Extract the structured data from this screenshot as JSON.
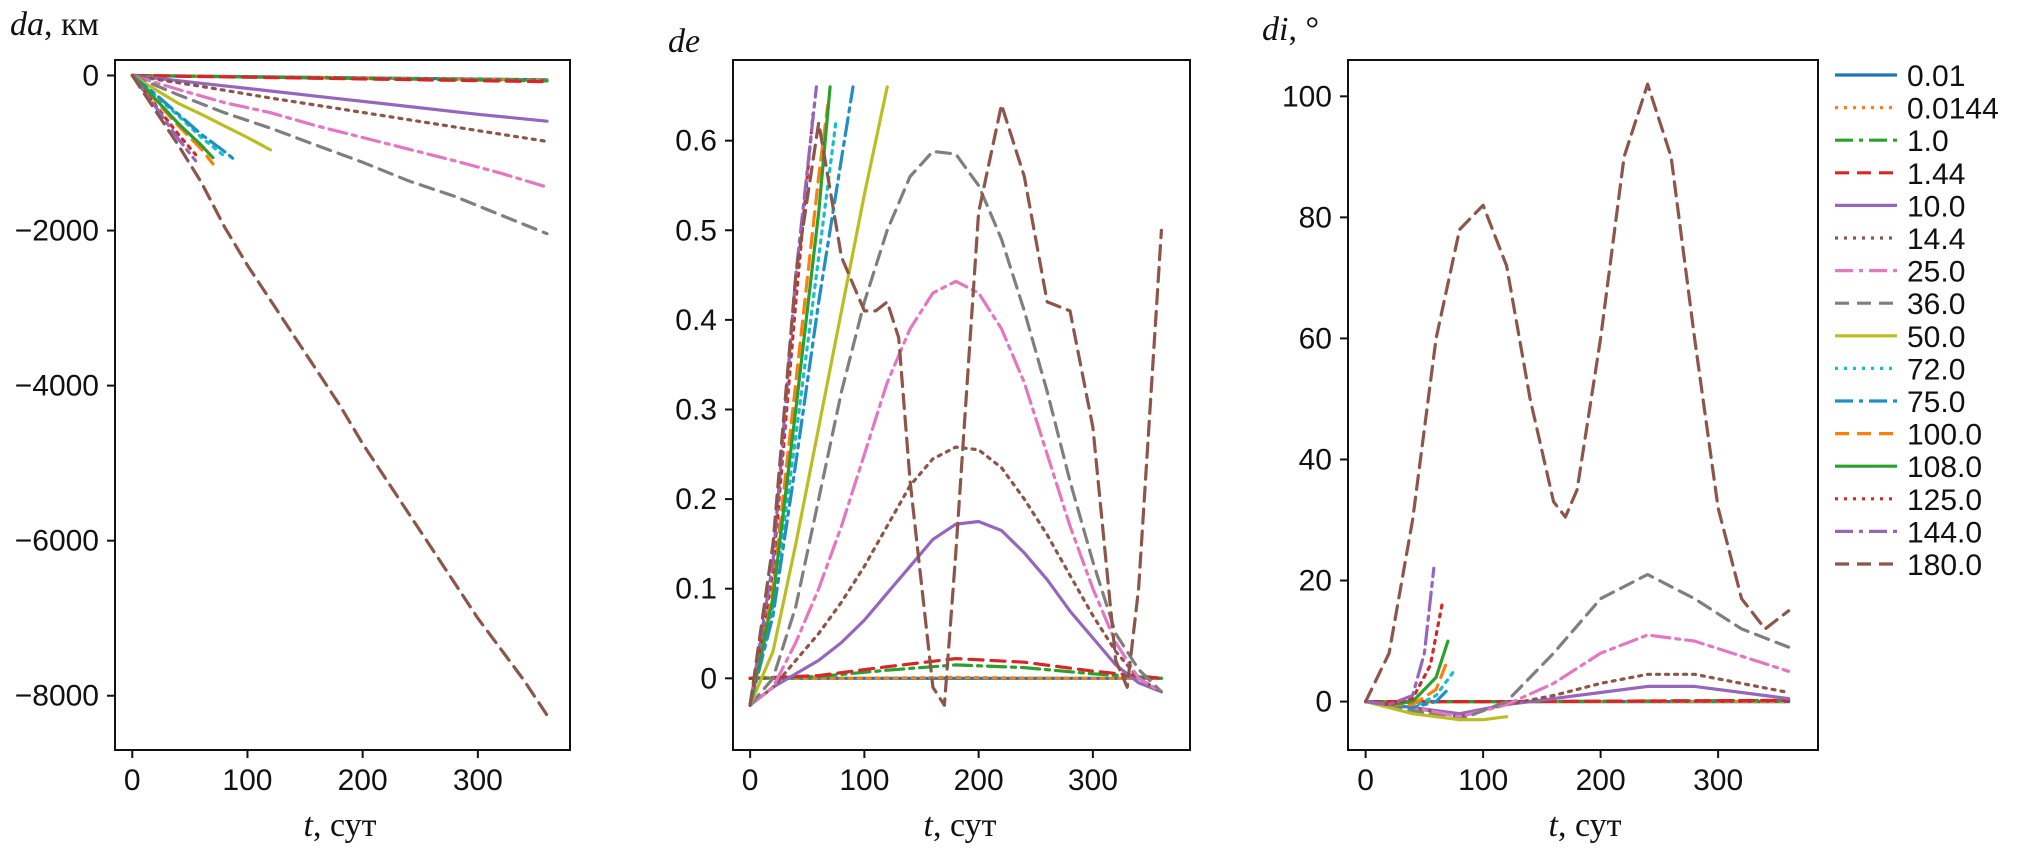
{
  "chart_data": [
    {
      "type": "line",
      "ylabel_var": "da",
      "ylabel_unit": ", км",
      "xlabel_var": "t",
      "xlabel_unit": ", сут",
      "xlim": [
        -15,
        380
      ],
      "ylim": [
        -8700,
        200
      ],
      "xticks": [
        0,
        100,
        200,
        300
      ],
      "yticks": [
        0,
        -2000,
        -4000,
        -6000,
        -8000
      ],
      "ytick_labels": [
        "0",
        "−2000",
        "−4000",
        "−6000",
        "−8000"
      ],
      "series": [
        {
          "name": "0.01",
          "x": [
            0,
            360
          ],
          "y": [
            0,
            -55
          ]
        },
        {
          "name": "0.0144",
          "x": [
            0,
            360
          ],
          "y": [
            0,
            -60
          ]
        },
        {
          "name": "1.0",
          "x": [
            0,
            360
          ],
          "y": [
            0,
            -70
          ]
        },
        {
          "name": "1.44",
          "x": [
            0,
            360
          ],
          "y": [
            0,
            -80
          ]
        },
        {
          "name": "10.0",
          "x": [
            0,
            60,
            120,
            180,
            240,
            300,
            360
          ],
          "y": [
            0,
            -100,
            -200,
            -300,
            -400,
            -500,
            -590
          ]
        },
        {
          "name": "14.4",
          "x": [
            0,
            60,
            120,
            180,
            240,
            300,
            360
          ],
          "y": [
            0,
            -140,
            -290,
            -430,
            -570,
            -710,
            -850
          ]
        },
        {
          "name": "25.0",
          "x": [
            0,
            40,
            80,
            120,
            160,
            200,
            240,
            280,
            320,
            360
          ],
          "y": [
            0,
            -180,
            -350,
            -480,
            -650,
            -800,
            -950,
            -1100,
            -1260,
            -1440
          ]
        },
        {
          "name": "36.0",
          "x": [
            0,
            40,
            80,
            120,
            160,
            200,
            240,
            280,
            320,
            360
          ],
          "y": [
            0,
            -250,
            -480,
            -680,
            -900,
            -1120,
            -1360,
            -1560,
            -1800,
            -2040
          ]
        },
        {
          "name": "50.0",
          "x": [
            0,
            20,
            40,
            60,
            80,
            100,
            120
          ],
          "y": [
            0,
            -180,
            -360,
            -500,
            -650,
            -800,
            -960
          ]
        },
        {
          "name": "72.0",
          "x": [
            0,
            20,
            40,
            60,
            80
          ],
          "y": [
            0,
            -260,
            -520,
            -800,
            -1040
          ]
        },
        {
          "name": "75.0",
          "x": [
            0,
            20,
            40,
            60,
            80,
            90
          ],
          "y": [
            0,
            -240,
            -500,
            -760,
            -980,
            -1100
          ]
        },
        {
          "name": "100.0",
          "x": [
            0,
            20,
            40,
            60,
            70
          ],
          "y": [
            0,
            -320,
            -650,
            -950,
            -1140
          ]
        },
        {
          "name": "108.0",
          "x": [
            0,
            20,
            40,
            60,
            70
          ],
          "y": [
            0,
            -300,
            -620,
            -900,
            -1060
          ]
        },
        {
          "name": "125.0",
          "x": [
            0,
            20,
            40,
            55
          ],
          "y": [
            0,
            -380,
            -760,
            -1020
          ]
        },
        {
          "name": "144.0",
          "x": [
            0,
            20,
            40,
            55
          ],
          "y": [
            0,
            -400,
            -820,
            -1100
          ]
        },
        {
          "name": "180.0",
          "x": [
            0,
            20,
            40,
            60,
            80,
            100,
            120,
            140,
            160,
            180,
            200,
            220,
            240,
            260,
            280,
            300,
            320,
            340,
            360
          ],
          "y": [
            0,
            -450,
            -900,
            -1380,
            -1950,
            -2450,
            -2900,
            -3350,
            -3800,
            -4250,
            -4750,
            -5200,
            -5650,
            -6100,
            -6550,
            -7000,
            -7400,
            -7800,
            -8250
          ]
        }
      ]
    },
    {
      "type": "line",
      "ylabel_var": "de",
      "ylabel_unit": "",
      "xlabel_var": "t",
      "xlabel_unit": ", сут",
      "xlim": [
        -15,
        385
      ],
      "ylim": [
        -0.08,
        0.69
      ],
      "xticks": [
        0,
        100,
        200,
        300
      ],
      "yticks": [
        0,
        0.1,
        0.2,
        0.3,
        0.4,
        0.5,
        0.6
      ],
      "ytick_labels": [
        "0",
        "0.1",
        "0.2",
        "0.3",
        "0.4",
        "0.5",
        "0.6"
      ],
      "series": [
        {
          "name": "0.01",
          "x": [
            0,
            90,
            180,
            270,
            360
          ],
          "y": [
            0,
            0,
            0,
            0,
            0
          ]
        },
        {
          "name": "0.0144",
          "x": [
            0,
            90,
            180,
            270,
            360
          ],
          "y": [
            0,
            0,
            0.001,
            0,
            0
          ]
        },
        {
          "name": "1.0",
          "x": [
            0,
            60,
            120,
            180,
            240,
            300,
            360
          ],
          "y": [
            0,
            0.002,
            0.009,
            0.015,
            0.012,
            0.005,
            0
          ]
        },
        {
          "name": "1.44",
          "x": [
            0,
            60,
            120,
            180,
            240,
            300,
            360
          ],
          "y": [
            0,
            0.003,
            0.013,
            0.022,
            0.018,
            0.008,
            0
          ]
        },
        {
          "name": "10.0",
          "x": [
            0,
            20,
            40,
            60,
            80,
            100,
            120,
            140,
            160,
            180,
            200,
            220,
            240,
            260,
            280,
            300,
            320,
            340,
            360
          ],
          "y": [
            -0.03,
            -0.01,
            0.005,
            0.02,
            0.04,
            0.065,
            0.095,
            0.125,
            0.155,
            0.172,
            0.175,
            0.165,
            0.14,
            0.11,
            0.075,
            0.045,
            0.015,
            -0.005,
            -0.015
          ]
        },
        {
          "name": "14.4",
          "x": [
            0,
            20,
            40,
            60,
            80,
            100,
            120,
            140,
            160,
            180,
            200,
            220,
            240,
            260,
            280,
            300,
            320,
            340,
            360
          ],
          "y": [
            -0.03,
            -0.01,
            0.02,
            0.05,
            0.085,
            0.125,
            0.17,
            0.215,
            0.245,
            0.258,
            0.255,
            0.235,
            0.2,
            0.16,
            0.115,
            0.07,
            0.03,
            0,
            -0.015
          ]
        },
        {
          "name": "25.0",
          "x": [
            0,
            20,
            40,
            60,
            80,
            100,
            120,
            140,
            160,
            180,
            200,
            220,
            240,
            260,
            280,
            300,
            320,
            340,
            360
          ],
          "y": [
            -0.03,
            -0.01,
            0.04,
            0.1,
            0.17,
            0.25,
            0.33,
            0.39,
            0.43,
            0.443,
            0.43,
            0.39,
            0.33,
            0.25,
            0.17,
            0.1,
            0.04,
            0,
            -0.015
          ]
        },
        {
          "name": "36.0",
          "x": [
            0,
            20,
            40,
            60,
            80,
            100,
            120,
            140,
            160,
            180,
            200,
            220,
            240,
            260,
            280,
            300,
            320,
            340,
            360
          ],
          "y": [
            -0.03,
            0,
            0.08,
            0.2,
            0.32,
            0.42,
            0.5,
            0.56,
            0.588,
            0.585,
            0.55,
            0.49,
            0.41,
            0.32,
            0.22,
            0.13,
            0.05,
            0.01,
            -0.015
          ]
        },
        {
          "name": "50.0",
          "x": [
            0,
            20,
            40,
            60,
            80,
            100,
            120
          ],
          "y": [
            -0.03,
            0.03,
            0.15,
            0.28,
            0.41,
            0.54,
            0.66
          ]
        },
        {
          "name": "72.0",
          "x": [
            0,
            20,
            40,
            60,
            75
          ],
          "y": [
            -0.03,
            0.08,
            0.27,
            0.47,
            0.62
          ]
        },
        {
          "name": "75.0",
          "x": [
            0,
            20,
            40,
            60,
            80,
            90
          ],
          "y": [
            -0.03,
            0.07,
            0.24,
            0.42,
            0.58,
            0.66
          ]
        },
        {
          "name": "100.0",
          "x": [
            0,
            20,
            40,
            60,
            68
          ],
          "y": [
            -0.03,
            0.1,
            0.33,
            0.56,
            0.64
          ]
        },
        {
          "name": "108.0",
          "x": [
            0,
            20,
            40,
            60,
            70
          ],
          "y": [
            -0.03,
            0.09,
            0.3,
            0.52,
            0.66
          ]
        },
        {
          "name": "125.0",
          "x": [
            0,
            20,
            40,
            55
          ],
          "y": [
            -0.03,
            0.12,
            0.42,
            0.63
          ]
        },
        {
          "name": "144.0",
          "x": [
            0,
            20,
            40,
            58
          ],
          "y": [
            -0.03,
            0.13,
            0.45,
            0.66
          ]
        },
        {
          "name": "180.0",
          "x": [
            0,
            20,
            40,
            60,
            80,
            100,
            110,
            120,
            130,
            140,
            160,
            170,
            180,
            200,
            220,
            240,
            260,
            280,
            300,
            320,
            330,
            340,
            360
          ],
          "y": [
            -0.03,
            0.15,
            0.45,
            0.62,
            0.47,
            0.41,
            0.41,
            0.42,
            0.38,
            0.22,
            -0.01,
            -0.03,
            0.14,
            0.52,
            0.64,
            0.56,
            0.42,
            0.41,
            0.28,
            0.02,
            -0.01,
            0.1,
            0.5
          ]
        }
      ]
    },
    {
      "type": "line",
      "ylabel_var": "di",
      "ylabel_unit": ", °",
      "xlabel_var": "t",
      "xlabel_unit": ", сут",
      "xlim": [
        -15,
        385
      ],
      "ylim": [
        -8,
        106
      ],
      "xticks": [
        0,
        100,
        200,
        300
      ],
      "yticks": [
        0,
        20,
        40,
        60,
        80,
        100
      ],
      "ytick_labels": [
        "0",
        "20",
        "40",
        "60",
        "80",
        "100"
      ],
      "legend_position": "right",
      "series": [
        {
          "name": "0.01",
          "x": [
            0,
            120,
            240,
            360
          ],
          "y": [
            0,
            0,
            0,
            0
          ]
        },
        {
          "name": "0.0144",
          "x": [
            0,
            120,
            240,
            360
          ],
          "y": [
            0,
            0,
            0,
            0
          ]
        },
        {
          "name": "1.0",
          "x": [
            0,
            120,
            240,
            360
          ],
          "y": [
            0,
            0,
            0.1,
            0.2
          ]
        },
        {
          "name": "1.44",
          "x": [
            0,
            120,
            240,
            360
          ],
          "y": [
            0,
            0,
            0.1,
            0.2
          ]
        },
        {
          "name": "10.0",
          "x": [
            0,
            40,
            80,
            120,
            160,
            200,
            240,
            280,
            320,
            360
          ],
          "y": [
            0,
            -1,
            -2,
            -0.5,
            0.5,
            1.5,
            2.5,
            2.5,
            1.5,
            0.5
          ]
        },
        {
          "name": "14.4",
          "x": [
            0,
            40,
            80,
            120,
            160,
            200,
            240,
            280,
            320,
            360
          ],
          "y": [
            0,
            -1,
            -2.5,
            -0.5,
            1,
            3,
            4.5,
            4.5,
            3,
            1.5
          ]
        },
        {
          "name": "25.0",
          "x": [
            0,
            40,
            80,
            120,
            160,
            200,
            240,
            280,
            320,
            360
          ],
          "y": [
            0,
            -1,
            -2.5,
            -0.5,
            3,
            8,
            11,
            10,
            7.5,
            5
          ]
        },
        {
          "name": "36.0",
          "x": [
            0,
            40,
            80,
            120,
            160,
            200,
            240,
            280,
            320,
            360
          ],
          "y": [
            0,
            -1.5,
            -3,
            0,
            8,
            17,
            21,
            17,
            12,
            9
          ]
        },
        {
          "name": "50.0",
          "x": [
            0,
            20,
            40,
            60,
            80,
            100,
            120
          ],
          "y": [
            0,
            -1,
            -2,
            -2.5,
            -3,
            -3,
            -2.5
          ]
        },
        {
          "name": "72.0",
          "x": [
            0,
            20,
            40,
            60,
            75
          ],
          "y": [
            0,
            -0.5,
            -1,
            1,
            5
          ]
        },
        {
          "name": "75.0",
          "x": [
            0,
            20,
            40,
            60,
            70
          ],
          "y": [
            0,
            -0.5,
            -1,
            0,
            2
          ]
        },
        {
          "name": "100.0",
          "x": [
            0,
            20,
            40,
            60,
            68
          ],
          "y": [
            0,
            -0.5,
            -0.5,
            2,
            6
          ]
        },
        {
          "name": "108.0",
          "x": [
            0,
            20,
            40,
            60,
            70
          ],
          "y": [
            0,
            -0.5,
            0,
            4,
            10
          ]
        },
        {
          "name": "125.0",
          "x": [
            0,
            20,
            40,
            55,
            65
          ],
          "y": [
            0,
            -0.5,
            0.5,
            6,
            16
          ]
        },
        {
          "name": "144.0",
          "x": [
            0,
            20,
            40,
            50,
            58
          ],
          "y": [
            0,
            -0.5,
            1,
            8,
            22
          ]
        },
        {
          "name": "180.0",
          "x": [
            0,
            20,
            40,
            60,
            80,
            100,
            120,
            140,
            160,
            170,
            180,
            200,
            220,
            240,
            260,
            280,
            300,
            320,
            340,
            360
          ],
          "y": [
            0,
            8,
            30,
            60,
            78,
            82,
            72,
            50,
            33,
            30.5,
            35,
            60,
            90,
            102,
            90,
            60,
            32,
            17,
            12,
            15
          ]
        }
      ]
    }
  ],
  "colors": {
    "0.01": "#1f77b4",
    "0.0144": "#ff7f0e",
    "1.0": "#2ca02c",
    "1.44": "#d62728",
    "10.0": "#9467bd",
    "14.4": "#8c564b",
    "25.0": "#e377c2",
    "36.0": "#7f7f7f",
    "50.0": "#bcbd22",
    "72.0": "#17becf",
    "75.0": "#1f8fc4",
    "100.0": "#ff7f0e",
    "108.0": "#2ca02c",
    "125.0": "#d62728",
    "144.0": "#9467bd",
    "180.0": "#8c564b"
  },
  "dashes": {
    "0.01": "",
    "0.0144": "3,6",
    "1.0": "18,6,4,6",
    "1.44": "14,8",
    "10.0": "",
    "14.4": "3,6",
    "25.0": "18,6,4,6",
    "36.0": "14,8",
    "50.0": "",
    "72.0": "3,6",
    "75.0": "18,6,4,6",
    "100.0": "14,8",
    "108.0": "",
    "125.0": "3,6",
    "144.0": "18,6,4,6",
    "180.0": "14,8"
  }
}
